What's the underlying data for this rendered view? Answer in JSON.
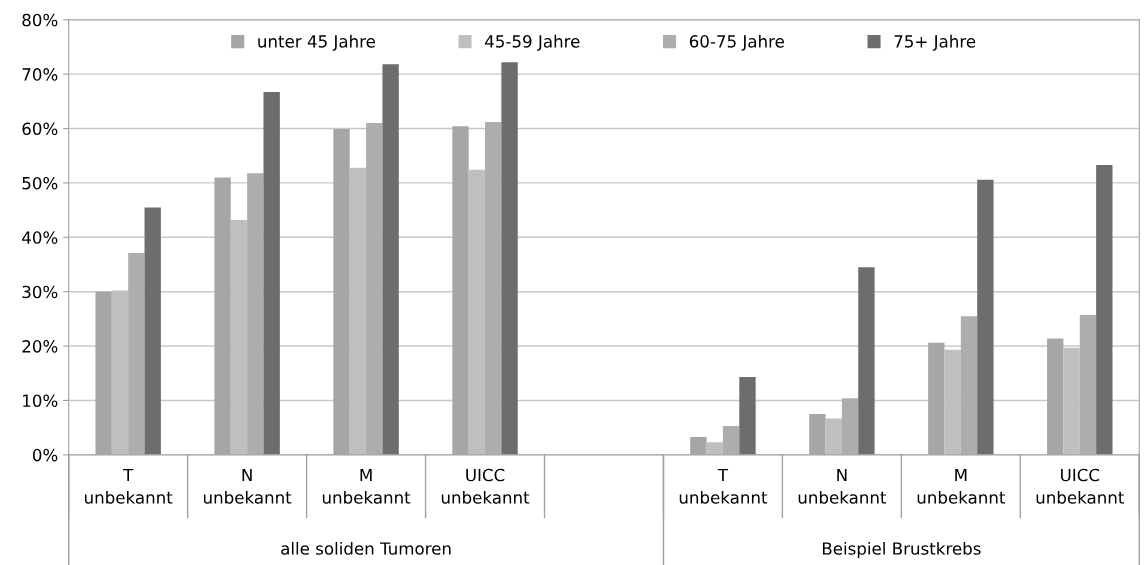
{
  "chart_data": {
    "type": "bar",
    "categories": [
      "T\nunbekannt",
      "N\nunbekannt",
      "M\nunbekannt",
      "UICC\nunbekannt",
      null,
      "T\nunbekannt",
      "N\nunbekannt",
      "M\nunbekannt",
      "UICC\nunbekannt"
    ],
    "series": [
      {
        "name": "unter 45 Jahre",
        "color": "#a6a6a6",
        "values": [
          30.0,
          51.0,
          59.9,
          60.4,
          null,
          3.3,
          7.5,
          20.6,
          21.4
        ]
      },
      {
        "name": "45-59 Jahre",
        "color": "#bfbfbf",
        "values": [
          30.2,
          43.2,
          52.8,
          52.4,
          null,
          2.3,
          6.7,
          19.3,
          19.7
        ]
      },
      {
        "name": "60-75 Jahre",
        "color": "#adadad",
        "values": [
          37.1,
          51.8,
          61.0,
          61.2,
          null,
          5.3,
          10.4,
          25.5,
          25.7
        ]
      },
      {
        "name": "75+ Jahre",
        "color": "#6d6d6d",
        "values": [
          45.5,
          66.7,
          71.8,
          72.2,
          null,
          14.3,
          34.5,
          50.6,
          53.3
        ]
      }
    ],
    "ylim": [
      0,
      80
    ],
    "yticks": [
      {
        "value": 0,
        "label": "0%"
      },
      {
        "value": 10,
        "label": "10%"
      },
      {
        "value": 20,
        "label": "20%"
      },
      {
        "value": 30,
        "label": "30%"
      },
      {
        "value": 40,
        "label": "40%"
      },
      {
        "value": 50,
        "label": "50%"
      },
      {
        "value": 60,
        "label": "60%"
      },
      {
        "value": 70,
        "label": "70%"
      },
      {
        "value": 80,
        "label": "80%"
      }
    ],
    "grid": "y",
    "legend": "top",
    "annotations": [
      "alle soliden Tumoren",
      "Beispiel Brustkrebs"
    ]
  }
}
